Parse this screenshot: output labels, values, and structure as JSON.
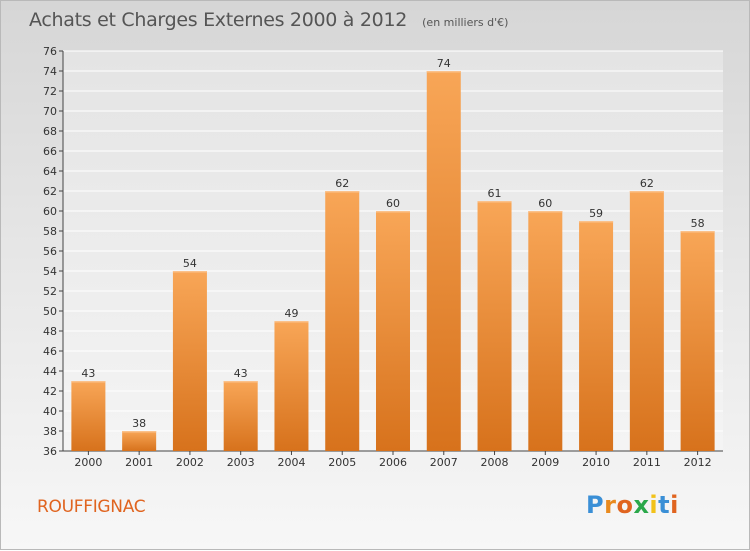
{
  "chart_data": {
    "type": "bar",
    "title": "Achats et Charges Externes 2000 à 2012",
    "subtitle": "(en milliers d'€)",
    "categories": [
      "2000",
      "2001",
      "2002",
      "2003",
      "2004",
      "2005",
      "2006",
      "2007",
      "2008",
      "2009",
      "2010",
      "2011",
      "2012"
    ],
    "values": [
      43,
      38,
      54,
      43,
      49,
      62,
      60,
      74,
      61,
      60,
      59,
      62,
      58
    ],
    "ylim": [
      36,
      76
    ],
    "yticks": [
      36,
      38,
      40,
      42,
      44,
      46,
      48,
      50,
      52,
      54,
      56,
      58,
      60,
      62,
      64,
      66,
      68,
      70,
      72,
      74,
      76
    ],
    "grid": true,
    "bar_color": "#f0923a"
  },
  "footer": {
    "commune": "ROUFFIGNAC",
    "logo_letters": [
      "P",
      "r",
      "o",
      "x",
      "i",
      "t",
      "i"
    ],
    "logo_colors": [
      "#3a8fd6",
      "#e98a1e",
      "#e0641f",
      "#2aa84a",
      "#f2c21a",
      "#3a8fd6",
      "#e0641f"
    ]
  }
}
